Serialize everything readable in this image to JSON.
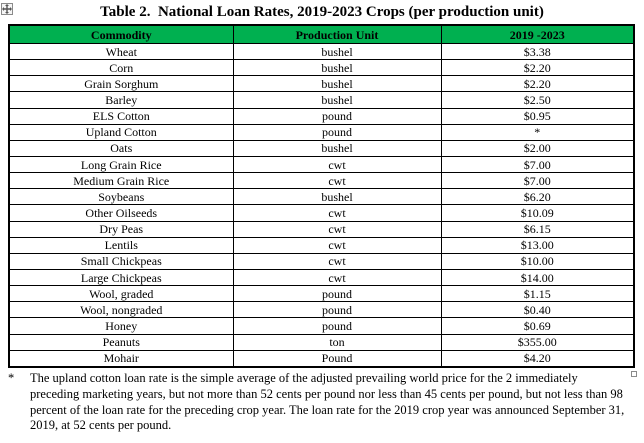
{
  "title": "Table 2.  National Loan Rates, 2019-2023 Crops (per production unit)",
  "table": {
    "header_bg": "#00B050",
    "columns": [
      "Commodity",
      "Production Unit",
      "2019 -2023"
    ],
    "rows": [
      [
        "Wheat",
        "bushel",
        "$3.38"
      ],
      [
        "Corn",
        "bushel",
        "$2.20"
      ],
      [
        "Grain Sorghum",
        "bushel",
        "$2.20"
      ],
      [
        "Barley",
        "bushel",
        "$2.50"
      ],
      [
        "ELS Cotton",
        "pound",
        "$0.95"
      ],
      [
        "Upland Cotton",
        "pound",
        "*"
      ],
      [
        "Oats",
        "bushel",
        "$2.00"
      ],
      [
        "Long Grain Rice",
        "cwt",
        "$7.00"
      ],
      [
        "Medium Grain Rice",
        "cwt",
        "$7.00"
      ],
      [
        "Soybeans",
        "bushel",
        "$6.20"
      ],
      [
        "Other Oilseeds",
        "cwt",
        "$10.09"
      ],
      [
        "Dry Peas",
        "cwt",
        "$6.15"
      ],
      [
        "Lentils",
        "cwt",
        "$13.00"
      ],
      [
        "Small Chickpeas",
        "cwt",
        "$10.00"
      ],
      [
        "Large Chickpeas",
        "cwt",
        "$14.00"
      ],
      [
        "Wool, graded",
        "pound",
        "$1.15"
      ],
      [
        "Wool, nongraded",
        "pound",
        "$0.40"
      ],
      [
        "Honey",
        "pound",
        "$0.69"
      ],
      [
        "Peanuts",
        "ton",
        "$355.00"
      ],
      [
        "Mohair",
        "Pound",
        "$4.20"
      ]
    ]
  },
  "footnote": {
    "marker": "*",
    "text": "The upland cotton loan rate is the simple average of the adjusted prevailing world price for the 2 immediately preceding marketing years, but not more than 52 cents per pound nor less than 45 cents per pound, but not less than 98 percent of the loan rate for the preceding crop year. The loan rate for the 2019 crop year was announced September 31, 2019, at 52 cents per pound."
  },
  "icons": {
    "table_move_handle": "four-way-move-arrow",
    "end_of_cell_marker": "hollow-square"
  }
}
